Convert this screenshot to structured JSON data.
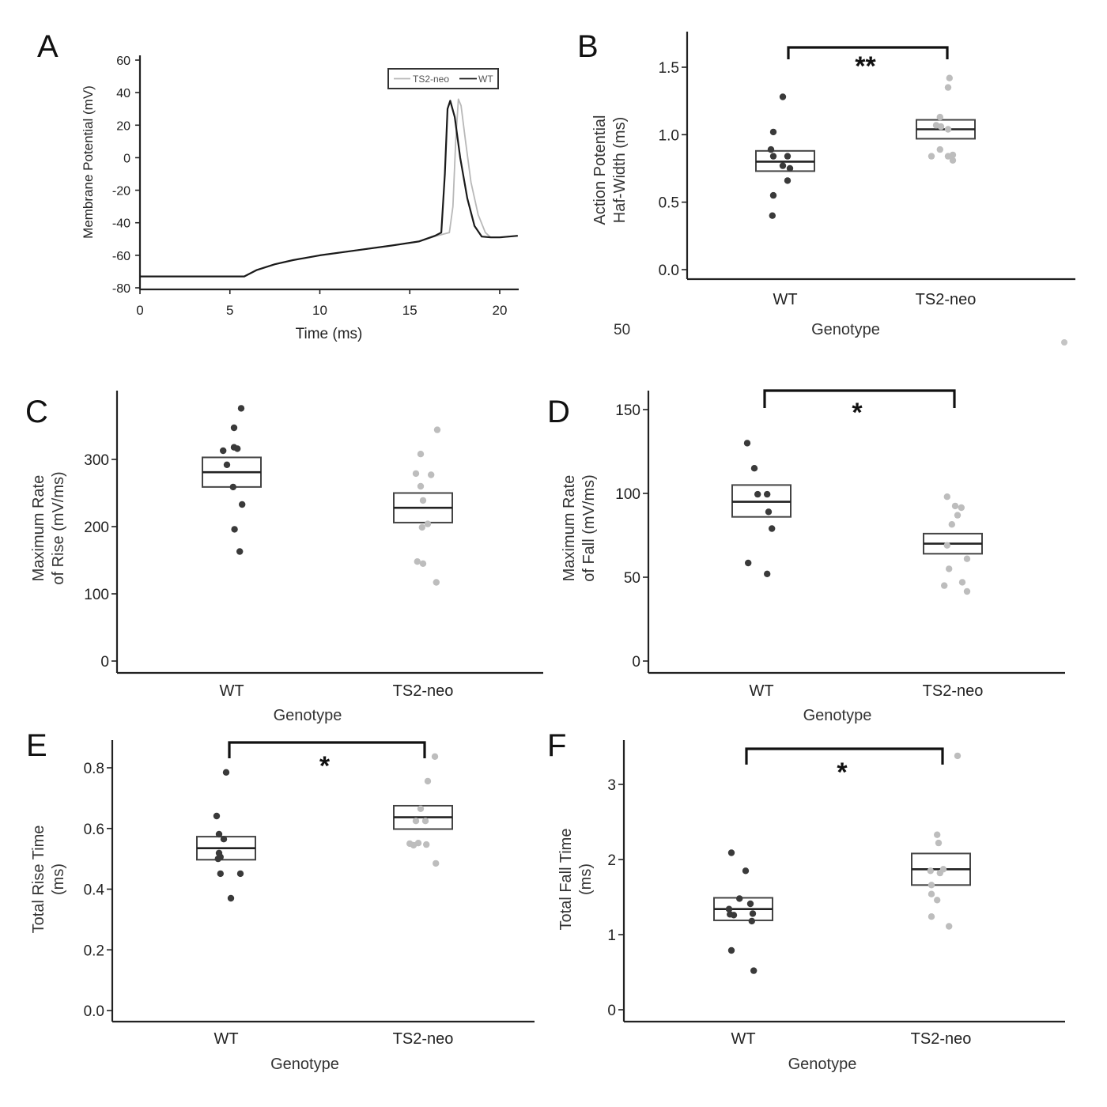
{
  "figure": {
    "stray_label": "50",
    "colors": {
      "wt": "#3a3a3a",
      "ts2neo": "#bdbdbd",
      "axis": "#222222"
    }
  },
  "chart_data": [
    {
      "panel": "A",
      "type": "line",
      "title": "",
      "xlabel": "Time (ms)",
      "ylabel": "Membrane Potential (mV)",
      "xlim": [
        0,
        21
      ],
      "ylim": [
        -80,
        60
      ],
      "xticks": [
        0,
        5,
        10,
        15,
        20
      ],
      "yticks": [
        60,
        40,
        20,
        0,
        -20,
        -40,
        -60,
        -80
      ],
      "legend": {
        "placement": "top-right",
        "entries": [
          "TS2-neo",
          "WT"
        ]
      },
      "series": [
        {
          "name": "TS2-neo",
          "color": "#b8b8b8",
          "x": [
            0,
            5.8,
            6.5,
            7.5,
            8.5,
            10,
            12,
            14,
            15.5,
            16.5,
            17.2,
            17.4,
            17.55,
            17.7,
            17.85,
            18.1,
            18.4,
            18.8,
            19.2,
            19.5,
            20,
            21
          ],
          "y": [
            -73,
            -73,
            -69,
            -65.5,
            -63,
            -60,
            -57,
            -54,
            -51.5,
            -48,
            -46,
            -30,
            10,
            36,
            32,
            10,
            -15,
            -35,
            -46,
            -49,
            -49,
            -48
          ]
        },
        {
          "name": "WT",
          "color": "#1a1a1a",
          "x": [
            0,
            5.8,
            6.5,
            7.5,
            8.5,
            10,
            12,
            14,
            15.5,
            16.4,
            16.75,
            16.95,
            17.1,
            17.25,
            17.5,
            17.8,
            18.2,
            18.6,
            19,
            19.5,
            20,
            21
          ],
          "y": [
            -73,
            -73,
            -69,
            -65.5,
            -63,
            -60,
            -57,
            -54,
            -51.5,
            -48,
            -46,
            -10,
            30,
            35,
            25,
            0,
            -25,
            -42,
            -48.5,
            -49,
            -49,
            -48
          ]
        }
      ]
    },
    {
      "panel": "B",
      "type": "scatter",
      "xlabel": "Genotype",
      "ylabel": "Action Potential Haf-Width (ms)",
      "categories": [
        "WT",
        "TS2-neo"
      ],
      "ylim": [
        -0.08,
        1.66
      ],
      "yticks": [
        0.0,
        0.5,
        1.0,
        1.5
      ],
      "ytick_labels": [
        "0.0",
        "0.5",
        "1.0",
        "1.5"
      ],
      "significance": "**",
      "series": [
        {
          "name": "WT",
          "values": [
            1.28,
            1.02,
            0.89,
            0.84,
            0.84,
            0.77,
            0.75,
            0.66,
            0.55,
            0.4
          ],
          "jitter": [
            -0.05,
            -0.25,
            -0.3,
            -0.25,
            0.05,
            -0.05,
            0.1,
            0.05,
            -0.25,
            -0.27
          ],
          "box": {
            "low": 0.73,
            "median": 0.8,
            "high": 0.88
          }
        },
        {
          "name": "TS2-neo",
          "values": [
            1.42,
            1.35,
            1.13,
            1.07,
            1.06,
            1.04,
            0.89,
            0.84,
            0.84,
            0.81,
            0.85
          ],
          "jitter": [
            0.08,
            0.05,
            -0.12,
            -0.2,
            -0.1,
            0.05,
            -0.12,
            -0.3,
            0.05,
            0.15,
            0.15
          ],
          "box": {
            "low": 0.97,
            "median": 1.04,
            "high": 1.11
          }
        }
      ]
    },
    {
      "panel": "C",
      "type": "scatter",
      "xlabel": "Genotype",
      "ylabel": "Maximum Rate of Rise (mV/ms)",
      "categories": [
        "WT",
        "TS2-neo"
      ],
      "ylim": [
        -18,
        398
      ],
      "yticks": [
        0,
        100,
        200,
        300
      ],
      "ytick_labels": [
        "0",
        "100",
        "200",
        "300"
      ],
      "significance": "",
      "series": [
        {
          "name": "WT",
          "values": [
            376,
            347,
            318,
            316,
            313,
            292,
            259,
            233,
            196,
            163
          ],
          "jitter": [
            0.2,
            0.05,
            0.05,
            0.12,
            -0.18,
            -0.1,
            0.03,
            0.22,
            0.06,
            0.17
          ],
          "box": {
            "low": 259,
            "median": 281,
            "high": 303
          }
        },
        {
          "name": "TS2-neo",
          "values": [
            344,
            308,
            279,
            277,
            260,
            239,
            204,
            199,
            148,
            145,
            117
          ],
          "jitter": [
            0.3,
            -0.05,
            -0.15,
            0.17,
            -0.05,
            0.0,
            0.1,
            -0.02,
            -0.12,
            0.0,
            0.28
          ],
          "box": {
            "low": 206,
            "median": 228,
            "high": 250
          }
        }
      ]
    },
    {
      "panel": "D",
      "type": "scatter",
      "xlabel": "Genotype",
      "ylabel": "Maximum Rate of Fall (mV/ms)",
      "categories": [
        "WT",
        "TS2-neo"
      ],
      "ylim": [
        -7,
        163
      ],
      "yticks": [
        0,
        50,
        100,
        150
      ],
      "ytick_labels": [
        "0",
        "50",
        "100",
        "150"
      ],
      "significance": "*",
      "series": [
        {
          "name": "WT",
          "values": [
            130,
            115,
            99.5,
            99.5,
            89,
            79,
            58.5,
            52
          ],
          "jitter": [
            -0.3,
            -0.15,
            -0.08,
            0.12,
            0.15,
            0.22,
            -0.28,
            0.12
          ],
          "box": {
            "low": 86,
            "median": 95,
            "high": 105
          }
        },
        {
          "name": "TS2-neo",
          "values": [
            98,
            92.5,
            91.5,
            87,
            81.5,
            69,
            61,
            55,
            45,
            47,
            41.5
          ],
          "jitter": [
            -0.12,
            0.05,
            0.18,
            0.1,
            -0.02,
            -0.12,
            0.3,
            -0.08,
            -0.18,
            0.2,
            0.3
          ],
          "box": {
            "low": 64,
            "median": 70,
            "high": 76
          }
        }
      ]
    },
    {
      "panel": "E",
      "type": "scatter",
      "xlabel": "Genotype",
      "ylabel": "Total Rise Time (ms)",
      "categories": [
        "WT",
        "TS2-neo"
      ],
      "ylim": [
        -0.036,
        0.89
      ],
      "yticks": [
        0.0,
        0.2,
        0.4,
        0.6,
        0.8
      ],
      "ytick_labels": [
        "0.0",
        "0.2",
        "0.4",
        "0.6",
        "0.8"
      ],
      "significance": "*",
      "series": [
        {
          "name": "WT",
          "values": [
            0.785,
            0.641,
            0.581,
            0.565,
            0.519,
            0.506,
            0.5,
            0.451,
            0.451,
            0.37
          ],
          "jitter": [
            0.0,
            -0.2,
            -0.15,
            -0.05,
            -0.15,
            -0.12,
            -0.17,
            -0.12,
            0.3,
            0.1
          ],
          "box": {
            "low": 0.497,
            "median": 0.535,
            "high": 0.573
          }
        },
        {
          "name": "TS2-neo",
          "values": [
            0.837,
            0.756,
            0.665,
            0.625,
            0.625,
            0.55,
            0.545,
            0.552,
            0.547,
            0.485
          ],
          "jitter": [
            0.25,
            0.1,
            -0.05,
            -0.15,
            0.05,
            -0.28,
            -0.2,
            -0.1,
            0.07,
            0.27
          ],
          "box": {
            "low": 0.598,
            "median": 0.637,
            "high": 0.675
          }
        }
      ]
    },
    {
      "panel": "F",
      "type": "scatter",
      "xlabel": "Genotype",
      "ylabel": "Total Fall Time (ms)",
      "categories": [
        "WT",
        "TS2-neo"
      ],
      "ylim": [
        -0.16,
        3.62
      ],
      "yticks": [
        0,
        1,
        2,
        3
      ],
      "ytick_labels": [
        "0",
        "1",
        "2",
        "3"
      ],
      "significance": "*",
      "series": [
        {
          "name": "WT",
          "values": [
            2.09,
            1.85,
            1.48,
            1.41,
            1.34,
            1.28,
            1.26,
            1.27,
            1.18,
            0.79,
            0.52
          ],
          "jitter": [
            -0.25,
            0.05,
            -0.08,
            0.15,
            -0.3,
            0.2,
            -0.2,
            -0.28,
            0.18,
            -0.25,
            0.22
          ],
          "box": {
            "low": 1.19,
            "median": 1.34,
            "high": 1.49
          }
        },
        {
          "name": "TS2-neo",
          "values": [
            3.38,
            1.85,
            1.87,
            2.33,
            2.22,
            1.66,
            1.54,
            1.46,
            1.24,
            1.11,
            1.82
          ],
          "jitter": [
            0.35,
            -0.22,
            0.05,
            -0.08,
            -0.05,
            -0.2,
            -0.2,
            -0.08,
            -0.2,
            0.17,
            -0.02
          ],
          "box": {
            "low": 1.66,
            "median": 1.87,
            "high": 2.08
          }
        }
      ]
    }
  ],
  "panels": {
    "A": {
      "letter": "A"
    },
    "B": {
      "letter": "B"
    },
    "C": {
      "letter": "C"
    },
    "D": {
      "letter": "D"
    },
    "E": {
      "letter": "E"
    },
    "F": {
      "letter": "F"
    }
  }
}
